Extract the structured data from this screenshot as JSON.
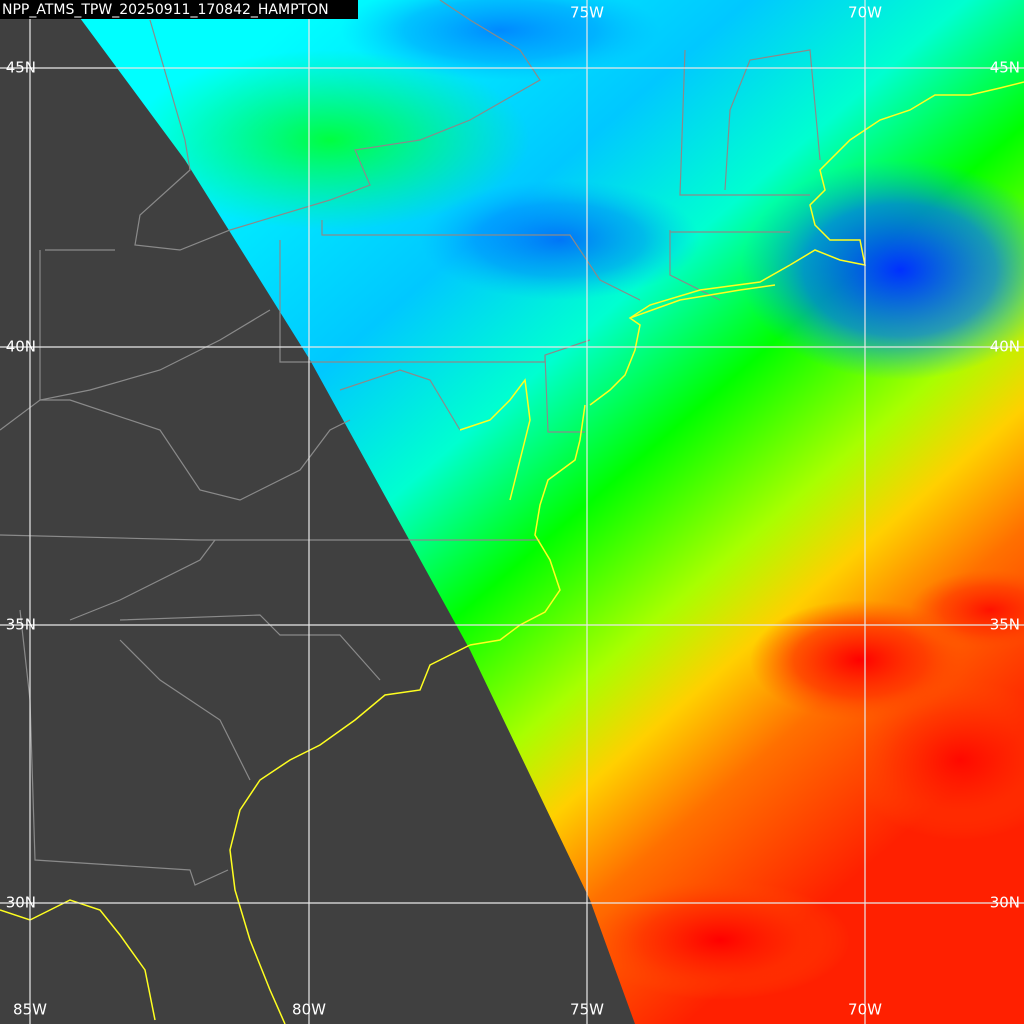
{
  "title": "NPP_ATMS_TPW_20250911_170842_HAMPTON",
  "top_labels": [
    "75W",
    "70W"
  ],
  "bottom_labels": [
    "85W",
    "80W",
    "75W",
    "70W"
  ],
  "left_labels": [
    "45N",
    "40N",
    "35N",
    "30N"
  ],
  "right_labels": [
    "45N",
    "40N",
    "35N",
    "30N"
  ]
}
